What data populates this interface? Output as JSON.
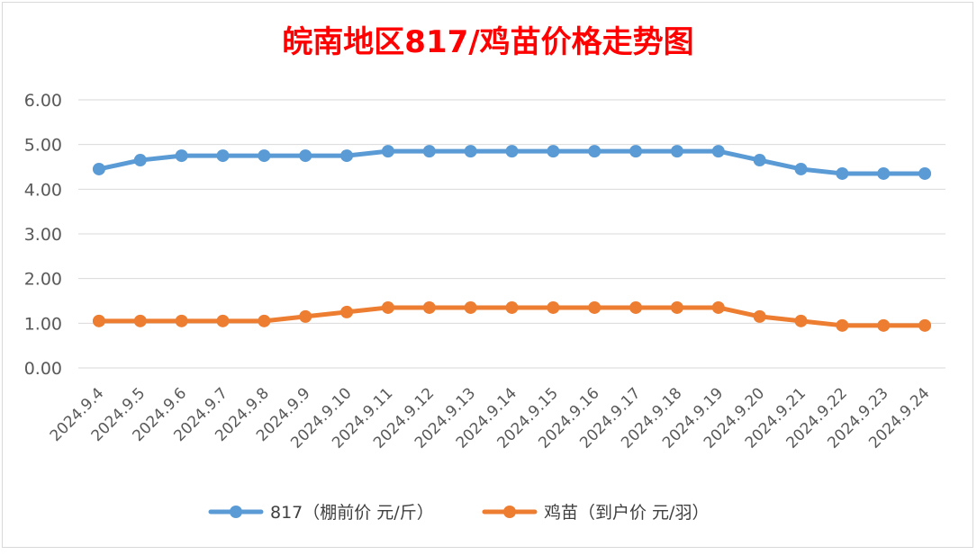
{
  "chart_data": {
    "type": "line",
    "title": "皖南地区817/鸡苗价格走势图",
    "title_color": "#ff0000",
    "categories": [
      "2024.9.4",
      "2024.9.5",
      "2024.9.6",
      "2024.9.7",
      "2024.9.8",
      "2024.9.9",
      "2024.9.10",
      "2024.9.11",
      "2024.9.12",
      "2024.9.13",
      "2024.9.14",
      "2024.9.15",
      "2024.9.16",
      "2024.9.17",
      "2024.9.18",
      "2024.9.19",
      "2024.9.20",
      "2024.9.21",
      "2024.9.22",
      "2024.9.23",
      "2024.9.24"
    ],
    "series": [
      {
        "name": "817（棚前价 元/斤）",
        "color": "#5b9bd5",
        "values": [
          4.45,
          4.65,
          4.75,
          4.75,
          4.75,
          4.75,
          4.75,
          4.85,
          4.85,
          4.85,
          4.85,
          4.85,
          4.85,
          4.85,
          4.85,
          4.85,
          4.65,
          4.45,
          4.35,
          4.35,
          4.35
        ]
      },
      {
        "name": "鸡苗（到户价 元/羽）",
        "color": "#ed7d31",
        "values": [
          1.05,
          1.05,
          1.05,
          1.05,
          1.05,
          1.15,
          1.25,
          1.35,
          1.35,
          1.35,
          1.35,
          1.35,
          1.35,
          1.35,
          1.35,
          1.35,
          1.15,
          1.05,
          0.95,
          0.95,
          0.95
        ]
      }
    ],
    "y_ticks": [
      "0.00",
      "1.00",
      "2.00",
      "3.00",
      "4.00",
      "5.00",
      "6.00"
    ],
    "ylim": [
      0,
      6
    ],
    "grid": true,
    "legend_position": "bottom"
  }
}
